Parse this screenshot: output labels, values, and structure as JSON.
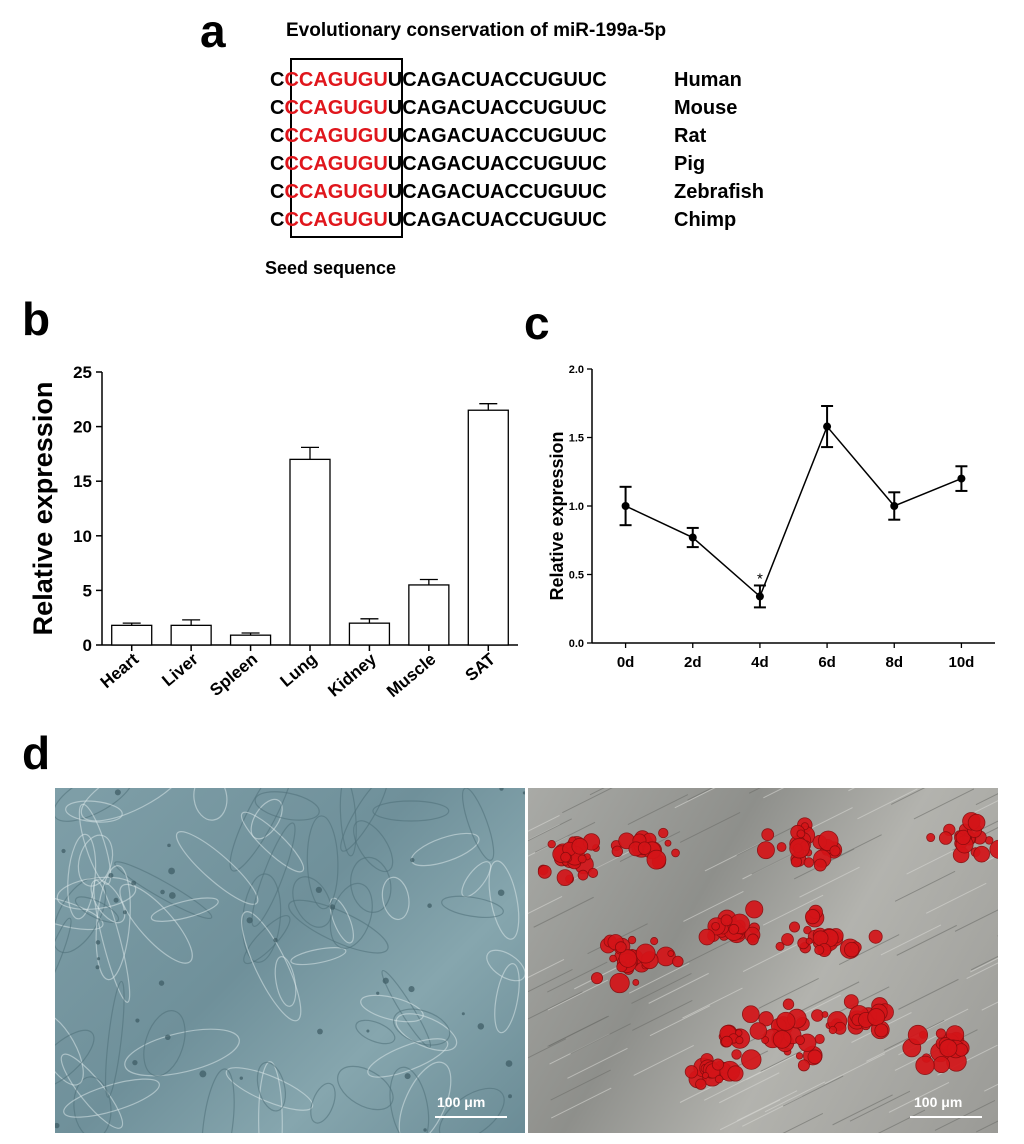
{
  "panels": {
    "a": "a",
    "b": "b",
    "c": "c",
    "d": "d"
  },
  "sequence": {
    "title": "Evolutionary conservation of miR-199a-5p",
    "rows": [
      {
        "pre": "C",
        "seed": "CCAGUGU",
        "post": "UCAGACUACCUGUUC",
        "species": "Human"
      },
      {
        "pre": "C",
        "seed": "CCAGUGU",
        "post": "UCAGACUACCUGUUC",
        "species": "Mouse"
      },
      {
        "pre": "C",
        "seed": "CCAGUGU",
        "post": "UCAGACUACCUGUUC",
        "species": "Rat"
      },
      {
        "pre": "C",
        "seed": "CCAGUGU",
        "post": "UCAGACUACCUGUUC",
        "species": "Pig"
      },
      {
        "pre": "C",
        "seed": "CCAGUGU",
        "post": "UCAGACUACCUGUUC",
        "species": "Zebrafish"
      },
      {
        "pre": "C",
        "seed": "CCAGUGU",
        "post": "UCAGACUACCUGUUC",
        "species": "Chimp"
      }
    ],
    "seed_label": "Seed sequence",
    "seed_color": "#e0161c"
  },
  "chart_data": [
    {
      "type": "bar",
      "ylabel": "Relative expression",
      "categories": [
        "Heart",
        "Liver",
        "Spleen",
        "Lung",
        "Kidney",
        "Muscle",
        "SAT"
      ],
      "values": [
        1.8,
        1.8,
        0.9,
        17.0,
        2.0,
        5.5,
        21.5
      ],
      "errors": [
        0.2,
        0.5,
        0.2,
        1.1,
        0.4,
        0.5,
        0.6
      ],
      "ylim": [
        0,
        25
      ],
      "yticks": [
        "0",
        "5",
        "10",
        "15",
        "20",
        "25"
      ],
      "grid": false
    },
    {
      "type": "line",
      "ylabel": "Relative expression",
      "categories": [
        "0d",
        "2d",
        "4d",
        "6d",
        "8d",
        "10d"
      ],
      "values": [
        1.0,
        0.77,
        0.34,
        1.58,
        1.0,
        1.2
      ],
      "errors": [
        0.14,
        0.07,
        0.08,
        0.15,
        0.1,
        0.09
      ],
      "ylim": [
        0,
        2.0
      ],
      "yticks": [
        "0.0",
        "0.5",
        "1.0",
        "1.5",
        "2.0"
      ],
      "annotations": [
        {
          "category": "4d",
          "text": "*"
        }
      ],
      "grid": false
    }
  ],
  "images": {
    "left": {
      "scale_label": "100 μm",
      "base_color": "#7c9ca6"
    },
    "right": {
      "scale_label": "100 μm",
      "base_color": "#a2a3a0",
      "stain_color": "#d41418"
    }
  }
}
